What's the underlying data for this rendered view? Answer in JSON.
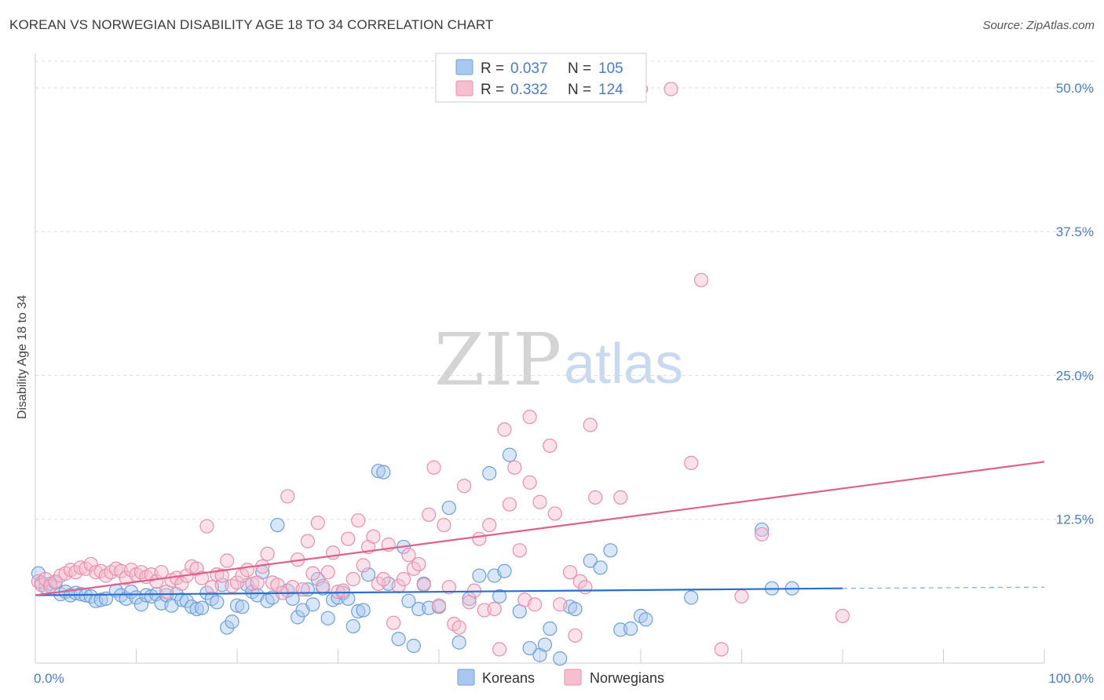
{
  "title": "KOREAN VS NORWEGIAN DISABILITY AGE 18 TO 34 CORRELATION CHART",
  "source": "Source: ZipAtlas.com",
  "watermark": {
    "zip": "ZIP",
    "atlas": "atlas"
  },
  "legend_top": [
    {
      "r_label": "R =",
      "r_value": "0.037",
      "n_label": "N =",
      "n_value": "105"
    },
    {
      "r_label": "R =",
      "r_value": "0.332",
      "n_label": "N =",
      "n_value": "124"
    }
  ],
  "legend_bottom": [
    {
      "label": "Koreans"
    },
    {
      "label": "Norwegians"
    }
  ],
  "colors": {
    "korean_fill": "#a9c8f0",
    "korean_stroke": "#6f9fd8",
    "korean_line": "#2a6fd0",
    "norwegian_fill": "#f6bfd0",
    "norwegian_stroke": "#e88fab",
    "norwegian_line": "#e0608c",
    "tick_text": "#4a7cc9",
    "grid": "#dddddd"
  },
  "chart_data": {
    "type": "scatter",
    "title": "KOREAN VS NORWEGIAN DISABILITY AGE 18 TO 34 CORRELATION CHART",
    "xlabel": "",
    "ylabel": "Disability Age 18 to 34",
    "xlim": [
      0,
      100
    ],
    "ylim": [
      0,
      53
    ],
    "x_tick_labels": [
      "0.0%",
      "100.0%"
    ],
    "y_ticks": [
      12.5,
      25.0,
      37.5,
      50.0
    ],
    "y_tick_labels": [
      "12.5%",
      "25.0%",
      "37.5%",
      "50.0%"
    ],
    "grid": true,
    "legend_position": "top-center",
    "series": [
      {
        "name": "Koreans",
        "r": 0.037,
        "n": 105,
        "trend": {
          "x0": 0,
          "y0": 5.9,
          "x1": 80,
          "y1": 6.5,
          "dashed_to_x": 100,
          "dashed_to_y": 6.6
        },
        "points": [
          [
            0.3,
            7.8
          ],
          [
            0.6,
            7.0
          ],
          [
            1.0,
            6.6
          ],
          [
            1.5,
            6.9
          ],
          [
            2.0,
            7.0
          ],
          [
            2.5,
            6.0
          ],
          [
            3.0,
            6.2
          ],
          [
            3.5,
            5.9
          ],
          [
            4.0,
            6.1
          ],
          [
            4.5,
            6.0
          ],
          [
            5.0,
            5.9
          ],
          [
            5.5,
            5.8
          ],
          [
            6.0,
            5.4
          ],
          [
            6.5,
            5.5
          ],
          [
            7.0,
            5.6
          ],
          [
            8.0,
            6.3
          ],
          [
            8.5,
            5.9
          ],
          [
            9.0,
            5.6
          ],
          [
            9.5,
            6.2
          ],
          [
            10.0,
            5.7
          ],
          [
            10.5,
            5.1
          ],
          [
            11.0,
            5.9
          ],
          [
            11.5,
            5.8
          ],
          [
            12.0,
            6.0
          ],
          [
            12.5,
            5.2
          ],
          [
            13.0,
            5.9
          ],
          [
            13.5,
            5.0
          ],
          [
            14.0,
            6.0
          ],
          [
            14.5,
            5.5
          ],
          [
            15.0,
            5.4
          ],
          [
            15.5,
            4.9
          ],
          [
            16.0,
            4.7
          ],
          [
            16.5,
            4.8
          ],
          [
            17.0,
            6.1
          ],
          [
            17.5,
            5.6
          ],
          [
            18.0,
            5.3
          ],
          [
            18.5,
            6.8
          ],
          [
            19.0,
            3.1
          ],
          [
            19.5,
            3.6
          ],
          [
            20.0,
            5.0
          ],
          [
            20.5,
            4.9
          ],
          [
            21.0,
            6.8
          ],
          [
            21.5,
            6.2
          ],
          [
            22.0,
            5.9
          ],
          [
            22.5,
            7.9
          ],
          [
            23.0,
            5.4
          ],
          [
            23.5,
            5.7
          ],
          [
            24.0,
            12.0
          ],
          [
            25.0,
            6.3
          ],
          [
            25.5,
            5.6
          ],
          [
            26.0,
            4.0
          ],
          [
            26.5,
            4.6
          ],
          [
            27.0,
            6.4
          ],
          [
            27.5,
            5.1
          ],
          [
            28.0,
            7.3
          ],
          [
            28.5,
            6.5
          ],
          [
            29.0,
            3.9
          ],
          [
            29.5,
            5.5
          ],
          [
            30.0,
            5.7
          ],
          [
            30.5,
            6.1
          ],
          [
            31.0,
            5.6
          ],
          [
            31.5,
            3.2
          ],
          [
            32.0,
            4.5
          ],
          [
            32.5,
            4.6
          ],
          [
            33.0,
            7.7
          ],
          [
            34.0,
            16.7
          ],
          [
            34.5,
            16.6
          ],
          [
            35.0,
            6.9
          ],
          [
            36.0,
            2.1
          ],
          [
            36.5,
            10.1
          ],
          [
            37.0,
            5.4
          ],
          [
            37.5,
            1.5
          ],
          [
            38.0,
            4.7
          ],
          [
            38.5,
            6.9
          ],
          [
            39.0,
            4.8
          ],
          [
            40.0,
            4.9
          ],
          [
            41.0,
            13.5
          ],
          [
            42.0,
            1.8
          ],
          [
            43.0,
            5.6
          ],
          [
            44.0,
            7.6
          ],
          [
            45.0,
            16.5
          ],
          [
            45.5,
            7.6
          ],
          [
            46.0,
            5.8
          ],
          [
            46.5,
            8.0
          ],
          [
            47.0,
            18.1
          ],
          [
            48.0,
            4.5
          ],
          [
            49.0,
            1.3
          ],
          [
            50.0,
            0.7
          ],
          [
            50.5,
            1.6
          ],
          [
            51.0,
            3.0
          ],
          [
            52.0,
            0.4
          ],
          [
            53.0,
            4.9
          ],
          [
            53.5,
            4.7
          ],
          [
            55.0,
            8.9
          ],
          [
            56.0,
            8.3
          ],
          [
            57.0,
            9.8
          ],
          [
            58.0,
            2.9
          ],
          [
            59.0,
            3.0
          ],
          [
            60.0,
            4.1
          ],
          [
            60.5,
            3.8
          ],
          [
            65.0,
            5.7
          ],
          [
            72.0,
            11.6
          ],
          [
            73.0,
            6.5
          ],
          [
            75.0,
            6.5
          ]
        ]
      },
      {
        "name": "Norwegians",
        "r": 0.332,
        "n": 124,
        "trend": {
          "x0": 0,
          "y0": 5.9,
          "x1": 100,
          "y1": 17.5
        },
        "points": [
          [
            0.3,
            7.1
          ],
          [
            0.6,
            6.8
          ],
          [
            1.0,
            7.3
          ],
          [
            1.5,
            6.7
          ],
          [
            2.0,
            7.1
          ],
          [
            2.5,
            7.6
          ],
          [
            3.0,
            7.8
          ],
          [
            3.5,
            8.1
          ],
          [
            4.0,
            7.9
          ],
          [
            4.5,
            8.3
          ],
          [
            5.0,
            8.2
          ],
          [
            5.5,
            8.6
          ],
          [
            6.0,
            7.9
          ],
          [
            6.5,
            8.0
          ],
          [
            7.0,
            7.6
          ],
          [
            7.5,
            7.9
          ],
          [
            8.0,
            8.2
          ],
          [
            8.5,
            8.0
          ],
          [
            9.0,
            7.4
          ],
          [
            9.5,
            8.1
          ],
          [
            10.0,
            7.7
          ],
          [
            10.5,
            7.9
          ],
          [
            11.0,
            7.5
          ],
          [
            11.5,
            7.7
          ],
          [
            12.0,
            7.1
          ],
          [
            12.5,
            7.9
          ],
          [
            13.0,
            6.2
          ],
          [
            13.5,
            7.2
          ],
          [
            14.0,
            7.4
          ],
          [
            14.5,
            6.9
          ],
          [
            15.0,
            7.6
          ],
          [
            15.5,
            8.4
          ],
          [
            16.0,
            8.2
          ],
          [
            16.5,
            7.4
          ],
          [
            17.0,
            11.9
          ],
          [
            17.5,
            6.6
          ],
          [
            18.0,
            7.7
          ],
          [
            18.5,
            7.6
          ],
          [
            19.0,
            8.9
          ],
          [
            19.5,
            6.7
          ],
          [
            20.0,
            7.0
          ],
          [
            20.5,
            7.6
          ],
          [
            21.0,
            8.1
          ],
          [
            21.5,
            6.9
          ],
          [
            22.0,
            7.0
          ],
          [
            22.5,
            8.4
          ],
          [
            23.0,
            9.5
          ],
          [
            23.5,
            7.0
          ],
          [
            24.0,
            6.8
          ],
          [
            24.5,
            6.1
          ],
          [
            25.0,
            14.5
          ],
          [
            25.5,
            6.6
          ],
          [
            26.0,
            9.0
          ],
          [
            26.5,
            6.4
          ],
          [
            27.0,
            10.6
          ],
          [
            27.5,
            7.8
          ],
          [
            28.0,
            12.2
          ],
          [
            28.5,
            6.7
          ],
          [
            29.0,
            7.9
          ],
          [
            29.5,
            9.6
          ],
          [
            30.0,
            6.2
          ],
          [
            30.5,
            6.3
          ],
          [
            31.0,
            10.8
          ],
          [
            31.5,
            7.3
          ],
          [
            32.0,
            12.4
          ],
          [
            32.5,
            8.5
          ],
          [
            33.0,
            10.1
          ],
          [
            33.5,
            11.0
          ],
          [
            34.0,
            6.9
          ],
          [
            34.5,
            7.3
          ],
          [
            35.0,
            10.3
          ],
          [
            35.5,
            3.5
          ],
          [
            36.0,
            6.7
          ],
          [
            36.5,
            7.3
          ],
          [
            37.0,
            9.4
          ],
          [
            37.5,
            8.2
          ],
          [
            38.0,
            8.6
          ],
          [
            38.5,
            6.8
          ],
          [
            39.0,
            12.9
          ],
          [
            39.5,
            17.0
          ],
          [
            40.0,
            5.0
          ],
          [
            40.5,
            12.0
          ],
          [
            41.0,
            6.6
          ],
          [
            41.5,
            3.4
          ],
          [
            42.0,
            3.1
          ],
          [
            42.5,
            15.4
          ],
          [
            43.0,
            5.3
          ],
          [
            43.5,
            6.3
          ],
          [
            44.0,
            10.8
          ],
          [
            44.5,
            4.6
          ],
          [
            45.0,
            12.0
          ],
          [
            45.5,
            4.7
          ],
          [
            46.0,
            1.2
          ],
          [
            46.5,
            20.3
          ],
          [
            47.0,
            13.8
          ],
          [
            47.5,
            17.0
          ],
          [
            48.0,
            9.8
          ],
          [
            48.5,
            5.5
          ],
          [
            49.0,
            21.4
          ],
          [
            49.5,
            5.1
          ],
          [
            50.0,
            14.0
          ],
          [
            51.0,
            18.9
          ],
          [
            51.5,
            13.0
          ],
          [
            52.0,
            5.1
          ],
          [
            53.0,
            7.9
          ],
          [
            53.5,
            2.4
          ],
          [
            54.0,
            7.1
          ],
          [
            54.5,
            6.6
          ],
          [
            55.0,
            20.7
          ],
          [
            55.5,
            14.4
          ],
          [
            58.0,
            14.4
          ],
          [
            60.0,
            49.9
          ],
          [
            63.0,
            49.9
          ],
          [
            65.0,
            17.4
          ],
          [
            66.0,
            33.3
          ],
          [
            68.0,
            1.2
          ],
          [
            70.0,
            5.8
          ],
          [
            72.0,
            11.2
          ],
          [
            80.0,
            4.1
          ],
          [
            49.0,
            15.7
          ]
        ]
      }
    ]
  }
}
